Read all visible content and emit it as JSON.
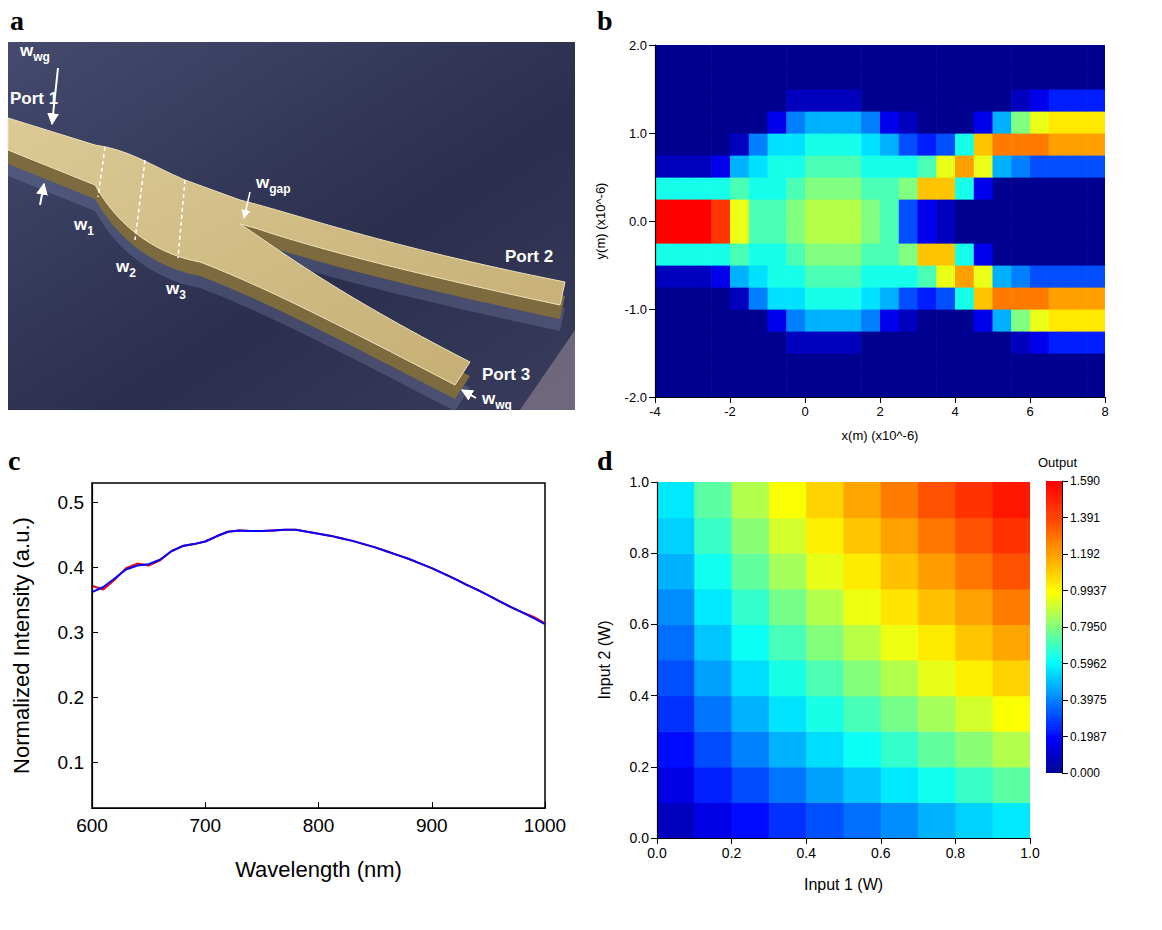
{
  "diagram": {
    "letter": "a",
    "labels": [
      {
        "text": "w",
        "sub": "wg"
      },
      {
        "text": "Port 1"
      },
      {
        "text": "w",
        "sub": "1"
      },
      {
        "text": "w",
        "sub": "2"
      },
      {
        "text": "w",
        "sub": "3"
      },
      {
        "text": "w",
        "sub": "gap"
      },
      {
        "text": "Port 2"
      },
      {
        "text": "Port 3"
      },
      {
        "text": "w",
        "sub": "wg"
      }
    ]
  },
  "chart_data": [
    {
      "letter": "b",
      "type": "heatmap",
      "x_label": "x(m) (x10^-6)",
      "y_label": "y(m) (x10^-6)",
      "xlim": [
        -4,
        8
      ],
      "xticks": [
        -4,
        -2,
        0,
        2,
        4,
        6,
        8
      ],
      "ylim": [
        -2,
        2
      ],
      "yticks": [
        {
          "value": -2,
          "label": "-2.0"
        },
        {
          "value": -1,
          "label": "-1.0"
        },
        {
          "value": 0,
          "label": "0.0"
        },
        {
          "value": 1,
          "label": "1.0"
        },
        {
          "value": 2,
          "label": "2.0"
        }
      ],
      "zlim": [
        0,
        1
      ],
      "x": [
        -3.75,
        -3.25,
        -2.75,
        -2.25,
        -1.75,
        -1.25,
        -0.75,
        -0.25,
        0.25,
        0.75,
        1.25,
        1.75,
        2.25,
        2.75,
        3.25,
        3.75,
        4.25,
        4.75,
        5.25,
        5.75,
        6.25,
        6.75,
        7.25,
        7.75
      ],
      "y": [
        -1.875,
        -1.625,
        -1.375,
        -1.125,
        -0.875,
        -0.625,
        -0.375,
        -0.125,
        0.125,
        0.375,
        0.625,
        0.875,
        1.125,
        1.375,
        1.625,
        1.875
      ],
      "cells": [
        [
          0,
          0,
          0,
          0,
          0,
          0,
          0,
          0,
          0,
          0,
          0,
          0,
          0,
          0,
          0,
          0,
          0,
          0,
          0,
          0,
          0,
          0,
          0,
          0
        ],
        [
          0,
          0,
          0,
          0,
          0,
          0,
          0,
          0,
          0,
          0,
          0,
          0,
          0,
          0,
          0,
          0,
          0,
          0,
          0,
          0,
          0,
          0,
          0,
          0
        ],
        [
          0,
          0,
          0,
          0,
          0,
          0,
          0,
          0.05,
          0.05,
          0.05,
          0.05,
          0,
          0,
          0,
          0,
          0,
          0,
          0,
          0,
          0.05,
          0.1,
          0.15,
          0.15,
          0.15
        ],
        [
          0,
          0,
          0,
          0,
          0,
          0,
          0.1,
          0.25,
          0.3,
          0.3,
          0.3,
          0.25,
          0.1,
          0.05,
          0,
          0,
          0,
          0.1,
          0.3,
          0.5,
          0.6,
          0.65,
          0.65,
          0.65
        ],
        [
          0,
          0,
          0,
          0,
          0.05,
          0.25,
          0.35,
          0.35,
          0.4,
          0.4,
          0.4,
          0.35,
          0.3,
          0.2,
          0.15,
          0.2,
          0.4,
          0.7,
          0.8,
          0.8,
          0.8,
          0.75,
          0.75,
          0.75
        ],
        [
          0.05,
          0.05,
          0.05,
          0.1,
          0.3,
          0.35,
          0.4,
          0.4,
          0.45,
          0.45,
          0.45,
          0.4,
          0.4,
          0.4,
          0.45,
          0.6,
          0.75,
          0.6,
          0.3,
          0.25,
          0.2,
          0.2,
          0.2,
          0.2
        ],
        [
          0.4,
          0.4,
          0.4,
          0.4,
          0.45,
          0.4,
          0.4,
          0.45,
          0.5,
          0.5,
          0.5,
          0.45,
          0.45,
          0.5,
          0.7,
          0.7,
          0.4,
          0.1,
          0,
          0,
          0,
          0,
          0,
          0
        ],
        [
          1,
          1,
          1,
          0.9,
          0.6,
          0.45,
          0.45,
          0.5,
          0.55,
          0.55,
          0.55,
          0.5,
          0.45,
          0.2,
          0.1,
          0.05,
          0,
          0,
          0,
          0,
          0,
          0,
          0,
          0
        ],
        [
          1,
          1,
          1,
          0.9,
          0.6,
          0.45,
          0.45,
          0.5,
          0.55,
          0.55,
          0.55,
          0.5,
          0.45,
          0.2,
          0.1,
          0.05,
          0,
          0,
          0,
          0,
          0,
          0,
          0,
          0
        ],
        [
          0.4,
          0.4,
          0.4,
          0.4,
          0.45,
          0.4,
          0.4,
          0.45,
          0.5,
          0.5,
          0.5,
          0.45,
          0.45,
          0.5,
          0.7,
          0.7,
          0.4,
          0.1,
          0,
          0,
          0,
          0,
          0,
          0
        ],
        [
          0.05,
          0.05,
          0.05,
          0.1,
          0.3,
          0.35,
          0.4,
          0.4,
          0.45,
          0.45,
          0.45,
          0.4,
          0.4,
          0.4,
          0.45,
          0.6,
          0.75,
          0.6,
          0.3,
          0.25,
          0.2,
          0.2,
          0.2,
          0.2
        ],
        [
          0,
          0,
          0,
          0,
          0.05,
          0.25,
          0.35,
          0.35,
          0.4,
          0.4,
          0.4,
          0.35,
          0.3,
          0.2,
          0.15,
          0.2,
          0.4,
          0.7,
          0.8,
          0.8,
          0.8,
          0.75,
          0.75,
          0.75
        ],
        [
          0,
          0,
          0,
          0,
          0,
          0,
          0.1,
          0.25,
          0.3,
          0.3,
          0.3,
          0.25,
          0.1,
          0.05,
          0,
          0,
          0,
          0.1,
          0.3,
          0.5,
          0.6,
          0.65,
          0.65,
          0.65
        ],
        [
          0,
          0,
          0,
          0,
          0,
          0,
          0,
          0.05,
          0.05,
          0.05,
          0.05,
          0,
          0,
          0,
          0,
          0,
          0,
          0,
          0,
          0.05,
          0.1,
          0.15,
          0.15,
          0.15
        ],
        [
          0,
          0,
          0,
          0,
          0,
          0,
          0,
          0,
          0,
          0,
          0,
          0,
          0,
          0,
          0,
          0,
          0,
          0,
          0,
          0,
          0,
          0,
          0,
          0
        ],
        [
          0,
          0,
          0,
          0,
          0,
          0,
          0,
          0,
          0,
          0,
          0,
          0,
          0,
          0,
          0,
          0,
          0,
          0,
          0,
          0,
          0,
          0,
          0,
          0
        ]
      ]
    },
    {
      "letter": "c",
      "type": "line",
      "x_label": "Wavelength (nm)",
      "y_label": "Normalized Intensity (a.u.)",
      "xlim": [
        600,
        1000
      ],
      "xticks": [
        600,
        700,
        800,
        900,
        1000
      ],
      "ylim": [
        0.03,
        0.53
      ],
      "yticks": [
        0.1,
        0.2,
        0.3,
        0.4,
        0.5
      ],
      "x": [
        600,
        610,
        620,
        630,
        640,
        650,
        660,
        670,
        680,
        690,
        700,
        710,
        720,
        730,
        740,
        750,
        760,
        770,
        780,
        790,
        800,
        810,
        820,
        830,
        840,
        850,
        860,
        870,
        880,
        890,
        900,
        910,
        920,
        930,
        940,
        950,
        960,
        970,
        980,
        990,
        1000
      ],
      "series": [
        {
          "color": "#ff0000",
          "values": [
            0.372,
            0.366,
            0.381,
            0.399,
            0.406,
            0.403,
            0.411,
            0.425,
            0.433,
            0.436,
            0.44,
            0.448,
            0.455,
            0.457,
            0.456,
            0.456,
            0.457,
            0.458,
            0.458,
            0.455,
            0.452,
            0.449,
            0.445,
            0.441,
            0.436,
            0.431,
            0.425,
            0.419,
            0.413,
            0.406,
            0.399,
            0.391,
            0.383,
            0.374,
            0.366,
            0.357,
            0.348,
            0.339,
            0.331,
            0.324,
            0.314
          ]
        },
        {
          "color": "#0000ff",
          "values": [
            0.362,
            0.37,
            0.383,
            0.397,
            0.403,
            0.405,
            0.412,
            0.425,
            0.433,
            0.436,
            0.44,
            0.448,
            0.455,
            0.457,
            0.456,
            0.456,
            0.457,
            0.458,
            0.458,
            0.455,
            0.452,
            0.449,
            0.445,
            0.441,
            0.436,
            0.431,
            0.425,
            0.419,
            0.413,
            0.406,
            0.399,
            0.391,
            0.383,
            0.374,
            0.366,
            0.357,
            0.348,
            0.339,
            0.331,
            0.322,
            0.313
          ]
        }
      ]
    },
    {
      "letter": "d",
      "type": "heatmap",
      "x_label": "Input 1 (W)",
      "y_label": "Input 2 (W)",
      "xlim": [
        0,
        1
      ],
      "xticks": [
        {
          "value": 0,
          "label": "0.0"
        },
        0.2,
        0.4,
        0.6,
        0.8,
        {
          "value": 1,
          "label": "1.0"
        }
      ],
      "ylim": [
        0,
        1
      ],
      "yticks": [
        {
          "value": 0,
          "label": "0.0"
        },
        0.2,
        0.4,
        0.6,
        0.8,
        {
          "value": 1,
          "label": "1.0"
        }
      ],
      "x": [
        0.05,
        0.15,
        0.25,
        0.35,
        0.45,
        0.55,
        0.65,
        0.75,
        0.85,
        0.95
      ],
      "y": [
        0.05,
        0.15,
        0.25,
        0.35,
        0.45,
        0.55,
        0.65,
        0.75,
        0.85,
        0.95
      ],
      "cells": [
        [
          0.08,
          0.15,
          0.21,
          0.27,
          0.32,
          0.37,
          0.42,
          0.48,
          0.53,
          0.57
        ],
        [
          0.15,
          0.24,
          0.31,
          0.38,
          0.45,
          0.51,
          0.57,
          0.63,
          0.69,
          0.74
        ],
        [
          0.21,
          0.31,
          0.4,
          0.48,
          0.55,
          0.62,
          0.68,
          0.75,
          0.81,
          0.87
        ],
        [
          0.27,
          0.38,
          0.48,
          0.56,
          0.64,
          0.71,
          0.78,
          0.85,
          0.92,
          0.98
        ],
        [
          0.32,
          0.45,
          0.55,
          0.64,
          0.72,
          0.8,
          0.87,
          0.95,
          1.02,
          1.08
        ],
        [
          0.37,
          0.51,
          0.62,
          0.71,
          0.8,
          0.88,
          0.96,
          1.03,
          1.11,
          1.18
        ],
        [
          0.42,
          0.57,
          0.68,
          0.78,
          0.87,
          0.96,
          1.04,
          1.12,
          1.19,
          1.27
        ],
        [
          0.48,
          0.63,
          0.75,
          0.85,
          0.95,
          1.03,
          1.12,
          1.2,
          1.28,
          1.36
        ],
        [
          0.53,
          0.69,
          0.81,
          0.92,
          1.02,
          1.11,
          1.19,
          1.28,
          1.36,
          1.44
        ],
        [
          0.57,
          0.74,
          0.87,
          0.98,
          1.08,
          1.18,
          1.27,
          1.36,
          1.44,
          1.52
        ]
      ],
      "colorbar": {
        "title": "Output",
        "range": [
          0,
          1.59
        ],
        "ticks": [
          {
            "value": 0,
            "label": "0.000"
          },
          0.1987,
          0.3975,
          0.5962,
          {
            "value": 0.795,
            "label": "0.7950"
          },
          0.9937,
          1.192,
          1.391,
          {
            "value": 1.59,
            "label": "1.590"
          }
        ]
      }
    }
  ]
}
